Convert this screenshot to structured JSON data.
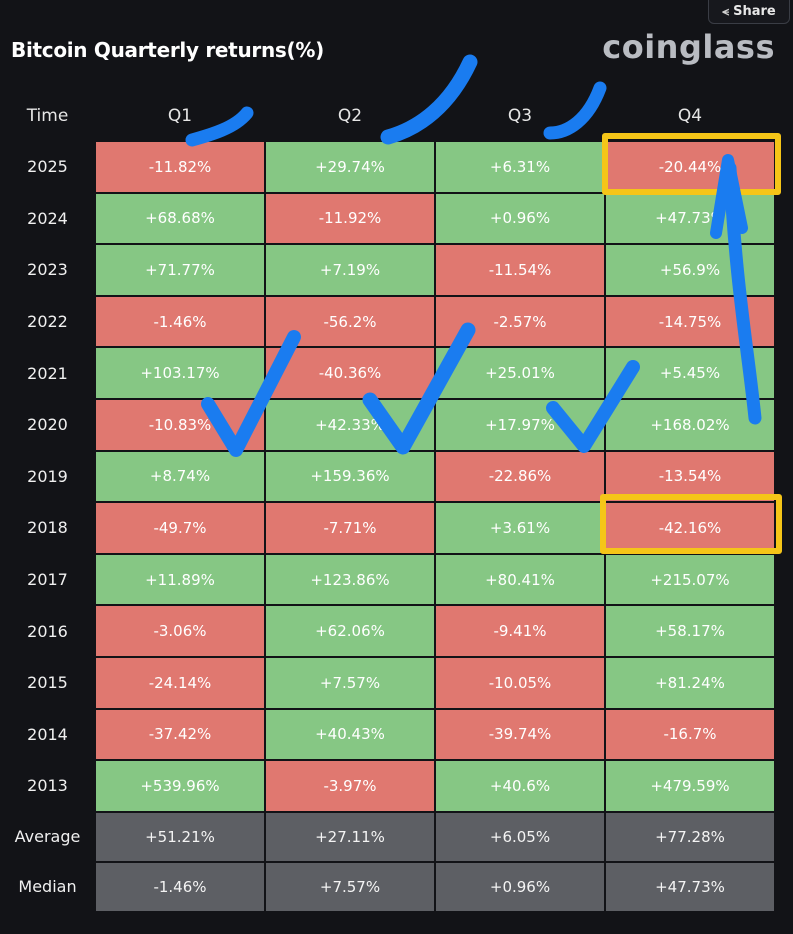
{
  "header": {
    "share_label": "Share",
    "share_icon": "share-icon",
    "title": "Bitcoin Quarterly returns(%)",
    "logo": "coinglass"
  },
  "chart_data": {
    "type": "table",
    "columns": [
      "Time",
      "Q1",
      "Q2",
      "Q3",
      "Q4"
    ],
    "rows": [
      {
        "label": "2025",
        "values": [
          "-11.82%",
          "+29.74%",
          "+6.31%",
          "-20.44%"
        ]
      },
      {
        "label": "2024",
        "values": [
          "+68.68%",
          "-11.92%",
          "+0.96%",
          "+47.73%"
        ]
      },
      {
        "label": "2023",
        "values": [
          "+71.77%",
          "+7.19%",
          "-11.54%",
          "+56.9%"
        ]
      },
      {
        "label": "2022",
        "values": [
          "-1.46%",
          "-56.2%",
          "-2.57%",
          "-14.75%"
        ]
      },
      {
        "label": "2021",
        "values": [
          "+103.17%",
          "-40.36%",
          "+25.01%",
          "+5.45%"
        ]
      },
      {
        "label": "2020",
        "values": [
          "-10.83%",
          "+42.33%",
          "+17.97%",
          "+168.02%"
        ]
      },
      {
        "label": "2019",
        "values": [
          "+8.74%",
          "+159.36%",
          "-22.86%",
          "-13.54%"
        ]
      },
      {
        "label": "2018",
        "values": [
          "-49.7%",
          "-7.71%",
          "+3.61%",
          "-42.16%"
        ]
      },
      {
        "label": "2017",
        "values": [
          "+11.89%",
          "+123.86%",
          "+80.41%",
          "+215.07%"
        ]
      },
      {
        "label": "2016",
        "values": [
          "-3.06%",
          "+62.06%",
          "-9.41%",
          "+58.17%"
        ]
      },
      {
        "label": "2015",
        "values": [
          "-24.14%",
          "+7.57%",
          "-10.05%",
          "+81.24%"
        ]
      },
      {
        "label": "2014",
        "values": [
          "-37.42%",
          "+40.43%",
          "-39.74%",
          "-16.7%"
        ]
      },
      {
        "label": "2013",
        "values": [
          "+539.96%",
          "-3.97%",
          "+40.6%",
          "+479.59%"
        ]
      }
    ],
    "summary": [
      {
        "label": "Average",
        "values": [
          "+51.21%",
          "+27.11%",
          "+6.05%",
          "+77.28%"
        ]
      },
      {
        "label": "Median",
        "values": [
          "-1.46%",
          "+7.57%",
          "+0.96%",
          "+47.73%"
        ]
      }
    ],
    "colors": {
      "positive": "#86c784",
      "negative": "#e07870",
      "summary": "#5d5f64"
    }
  },
  "annotations": {
    "highlight_color": "#f5c518",
    "highlighted_cells": [
      {
        "row": "2025",
        "col": "Q4"
      },
      {
        "row": "2018",
        "col": "Q4"
      }
    ],
    "stroke_color": "#1a7cf0"
  }
}
